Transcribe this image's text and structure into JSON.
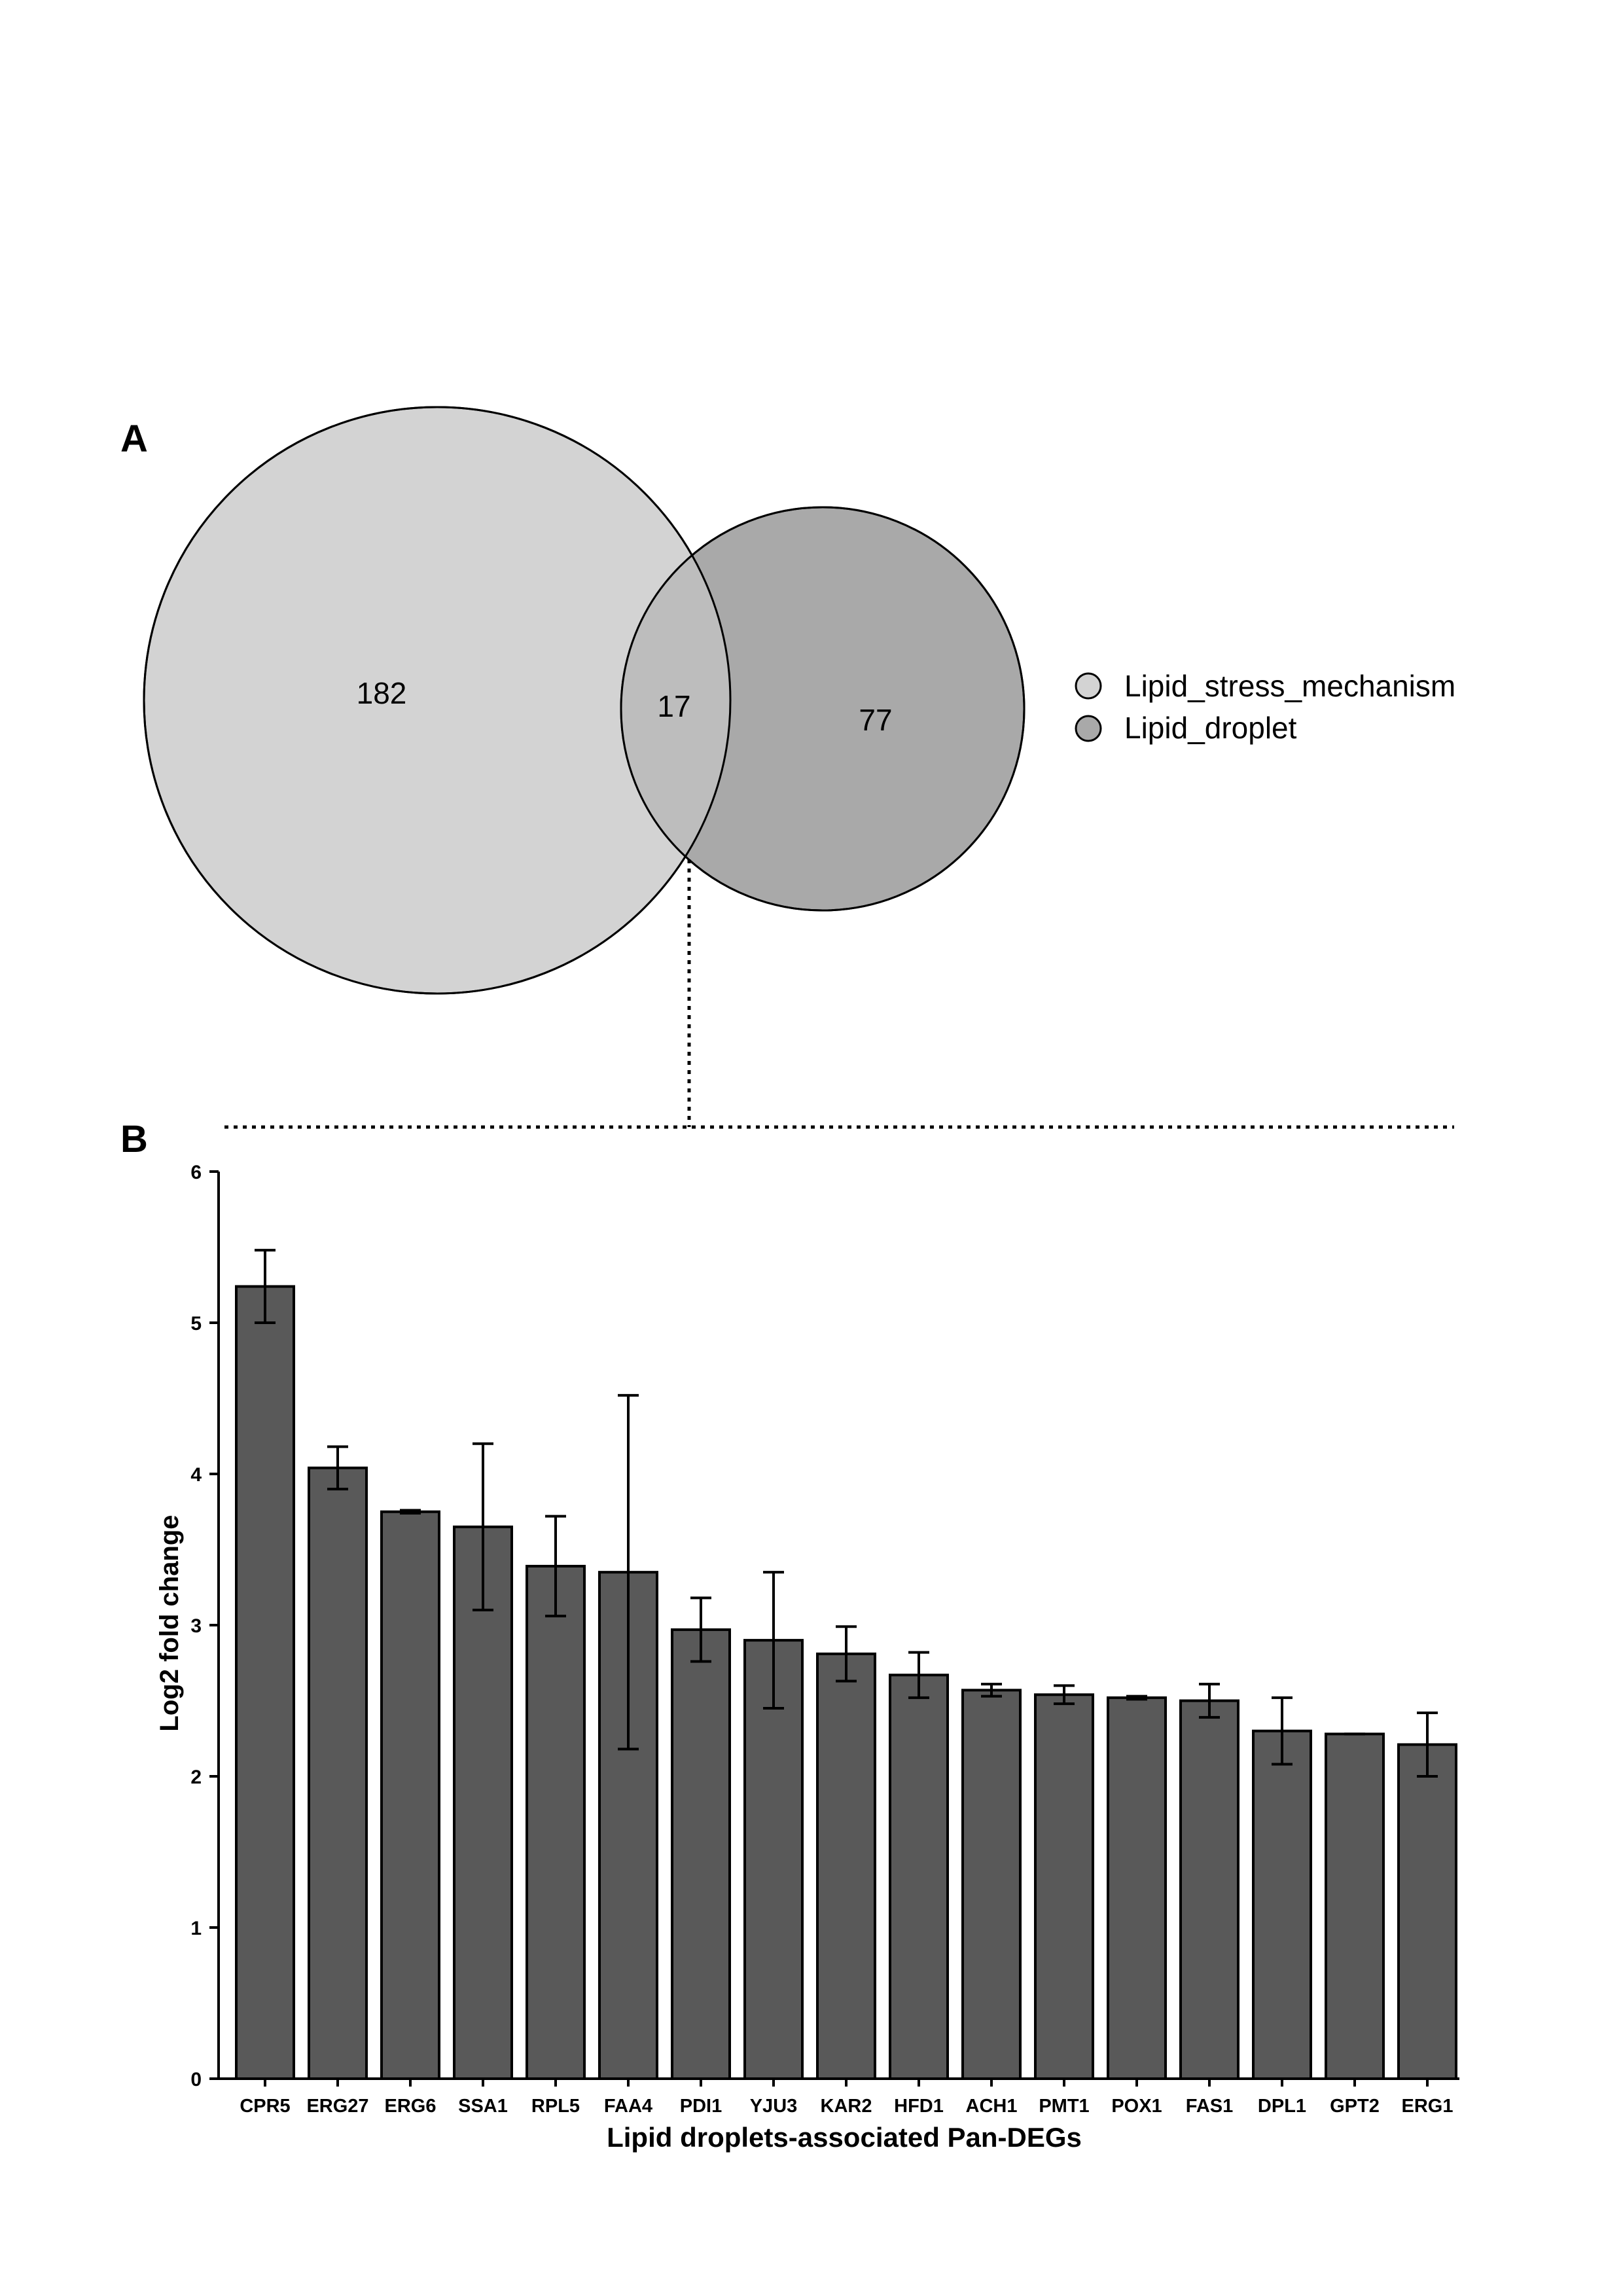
{
  "panels": {
    "a_label": "A",
    "b_label": "B"
  },
  "venn": {
    "sets": [
      {
        "name": "Lipid_stress_mechanism",
        "color": "#d3d3d3"
      },
      {
        "name": "Lipid_droplet",
        "color": "#a9a9a9"
      }
    ],
    "regions": {
      "only_first": "182",
      "intersection": "17",
      "only_second": "77"
    },
    "counts": {
      "only_first": 182,
      "intersection": 17,
      "only_second": 77
    }
  },
  "chart_data": {
    "type": "bar",
    "xlabel": "Lipid droplets-associated Pan-DEGs",
    "ylabel": "Log2 fold change",
    "ylim": [
      0,
      6
    ],
    "yticks": [
      "0",
      "1",
      "2",
      "3",
      "4",
      "5",
      "6"
    ],
    "bar_color": "#595959",
    "categories": [
      "CPR5",
      "ERG27",
      "ERG6",
      "SSA1",
      "RPL5",
      "FAA4",
      "PDI1",
      "YJU3",
      "KAR2",
      "HFD1",
      "ACH1",
      "PMT1",
      "POX1",
      "FAS1",
      "DPL1",
      "GPT2",
      "ERG1"
    ],
    "values": [
      5.24,
      4.04,
      3.75,
      3.65,
      3.39,
      3.35,
      2.97,
      2.9,
      2.81,
      2.67,
      2.57,
      2.54,
      2.52,
      2.5,
      2.3,
      2.28,
      2.21
    ],
    "error": [
      0.24,
      0.14,
      0.01,
      0.55,
      0.33,
      1.17,
      0.21,
      0.45,
      0.18,
      0.15,
      0.04,
      0.06,
      0.01,
      0.11,
      0.22,
      0.0,
      0.21
    ],
    "grid": false
  }
}
